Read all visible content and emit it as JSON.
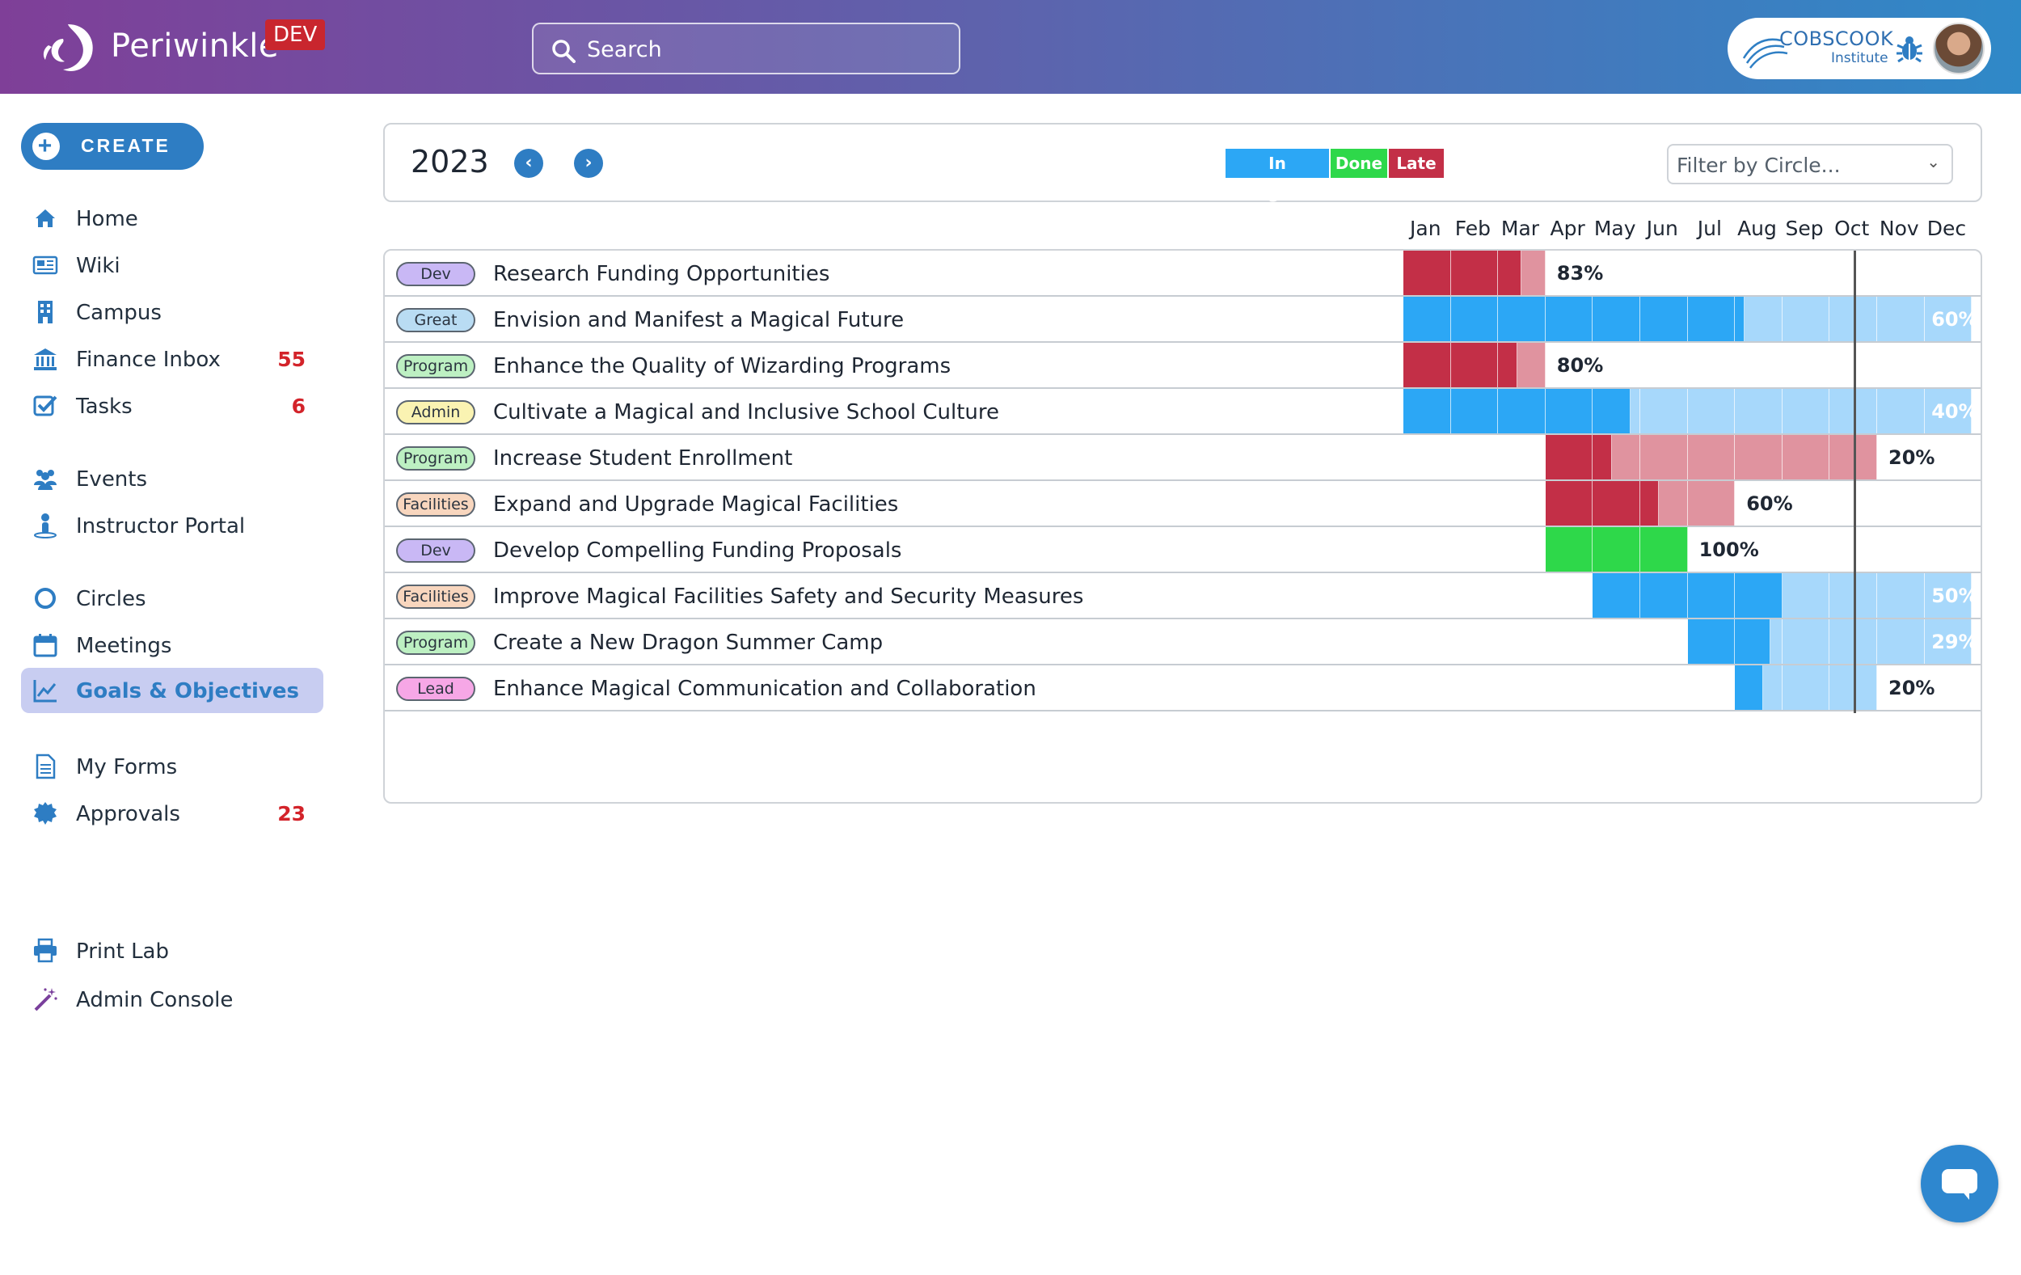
{
  "header": {
    "brand": "Periwinkle",
    "env_badge": "DEV",
    "search_placeholder": "Search",
    "org_name": "COBSCOOK",
    "org_sub": "Institute"
  },
  "sidebar": {
    "create_label": "CREATE",
    "items": [
      {
        "label": "Home",
        "count": "",
        "icon": "home-icon"
      },
      {
        "label": "Wiki",
        "count": "",
        "icon": "newspaper-icon"
      },
      {
        "label": "Campus",
        "count": "",
        "icon": "building-icon"
      },
      {
        "label": "Finance Inbox",
        "count": "55",
        "icon": "bank-icon"
      },
      {
        "label": "Tasks",
        "count": "6",
        "icon": "checkbox-icon"
      },
      {
        "label": "Events",
        "count": "",
        "icon": "people-icon"
      },
      {
        "label": "Instructor Portal",
        "count": "",
        "icon": "person-pin-icon"
      },
      {
        "label": "Circles",
        "count": "",
        "icon": "circle-icon"
      },
      {
        "label": "Meetings",
        "count": "",
        "icon": "calendar-icon"
      },
      {
        "label": "Goals & Objectives",
        "count": "",
        "icon": "chart-line-icon"
      },
      {
        "label": "My Forms",
        "count": "",
        "icon": "document-icon"
      },
      {
        "label": "Approvals",
        "count": "23",
        "icon": "badge-icon"
      },
      {
        "label": "Print Lab",
        "count": "",
        "icon": "printer-icon"
      },
      {
        "label": "Admin Console",
        "count": "",
        "icon": "magic-wand-icon"
      }
    ]
  },
  "toolbar": {
    "year": "2023",
    "legend": {
      "in_progress": "In Progress",
      "done": "Done",
      "late": "Late"
    },
    "filter_placeholder": "Filter by Circle..."
  },
  "colors": {
    "in_progress": "#2ca7f5",
    "in_progress_light": "#a7d8fb",
    "done": "#2ed84a",
    "late": "#c32f47",
    "late_light": "#e0939f"
  },
  "months": [
    "Jan",
    "Feb",
    "Mar",
    "Apr",
    "May",
    "Jun",
    "Jul",
    "Aug",
    "Sep",
    "Oct",
    "Nov",
    "Dec"
  ],
  "goals": [
    {
      "circle": "Dev",
      "tag_color": "#c9b8f5",
      "title": "Research Funding Opportunities",
      "status": "late",
      "start": 0,
      "end": 3,
      "progress": 83,
      "pct": "83%"
    },
    {
      "circle": "Great",
      "tag_color": "#b9dcf3",
      "title": "Envision and Manifest a Magical Future",
      "status": "in_progress",
      "start": 0,
      "end": 12,
      "progress": 60,
      "pct": "60%"
    },
    {
      "circle": "Program",
      "tag_color": "#bdf0c2",
      "title": "Enhance the Quality of Wizarding Programs",
      "status": "late",
      "start": 0,
      "end": 3,
      "progress": 80,
      "pct": "80%"
    },
    {
      "circle": "Admin",
      "tag_color": "#faf3b2",
      "title": "Cultivate a Magical and Inclusive School Culture",
      "status": "in_progress",
      "start": 0,
      "end": 12,
      "progress": 40,
      "pct": "40%"
    },
    {
      "circle": "Program",
      "tag_color": "#bdf0c2",
      "title": "Increase Student Enrollment",
      "status": "late",
      "start": 3,
      "end": 10,
      "progress": 20,
      "pct": "20%"
    },
    {
      "circle": "Facilities",
      "tag_color": "#f8d6be",
      "title": "Expand and Upgrade Magical Facilities",
      "status": "late",
      "start": 3,
      "end": 7,
      "progress": 60,
      "pct": "60%"
    },
    {
      "circle": "Dev",
      "tag_color": "#c9b8f5",
      "title": "Develop Compelling Funding Proposals",
      "status": "done",
      "start": 3,
      "end": 6,
      "progress": 100,
      "pct": "100%"
    },
    {
      "circle": "Facilities",
      "tag_color": "#f8d6be",
      "title": "Improve Magical Facilities Safety and Security Measures",
      "status": "in_progress",
      "start": 4,
      "end": 12,
      "progress": 50,
      "pct": "50%"
    },
    {
      "circle": "Program",
      "tag_color": "#bdf0c2",
      "title": "Create a New Dragon Summer Camp",
      "status": "in_progress",
      "start": 6,
      "end": 12,
      "progress": 29,
      "pct": "29%"
    },
    {
      "circle": "Lead",
      "tag_color": "#f6a7e6",
      "title": "Enhance Magical Communication and Collaboration",
      "status": "in_progress",
      "start": 7,
      "end": 10,
      "progress": 20,
      "pct": "20%"
    }
  ],
  "today_month": 9.5
}
